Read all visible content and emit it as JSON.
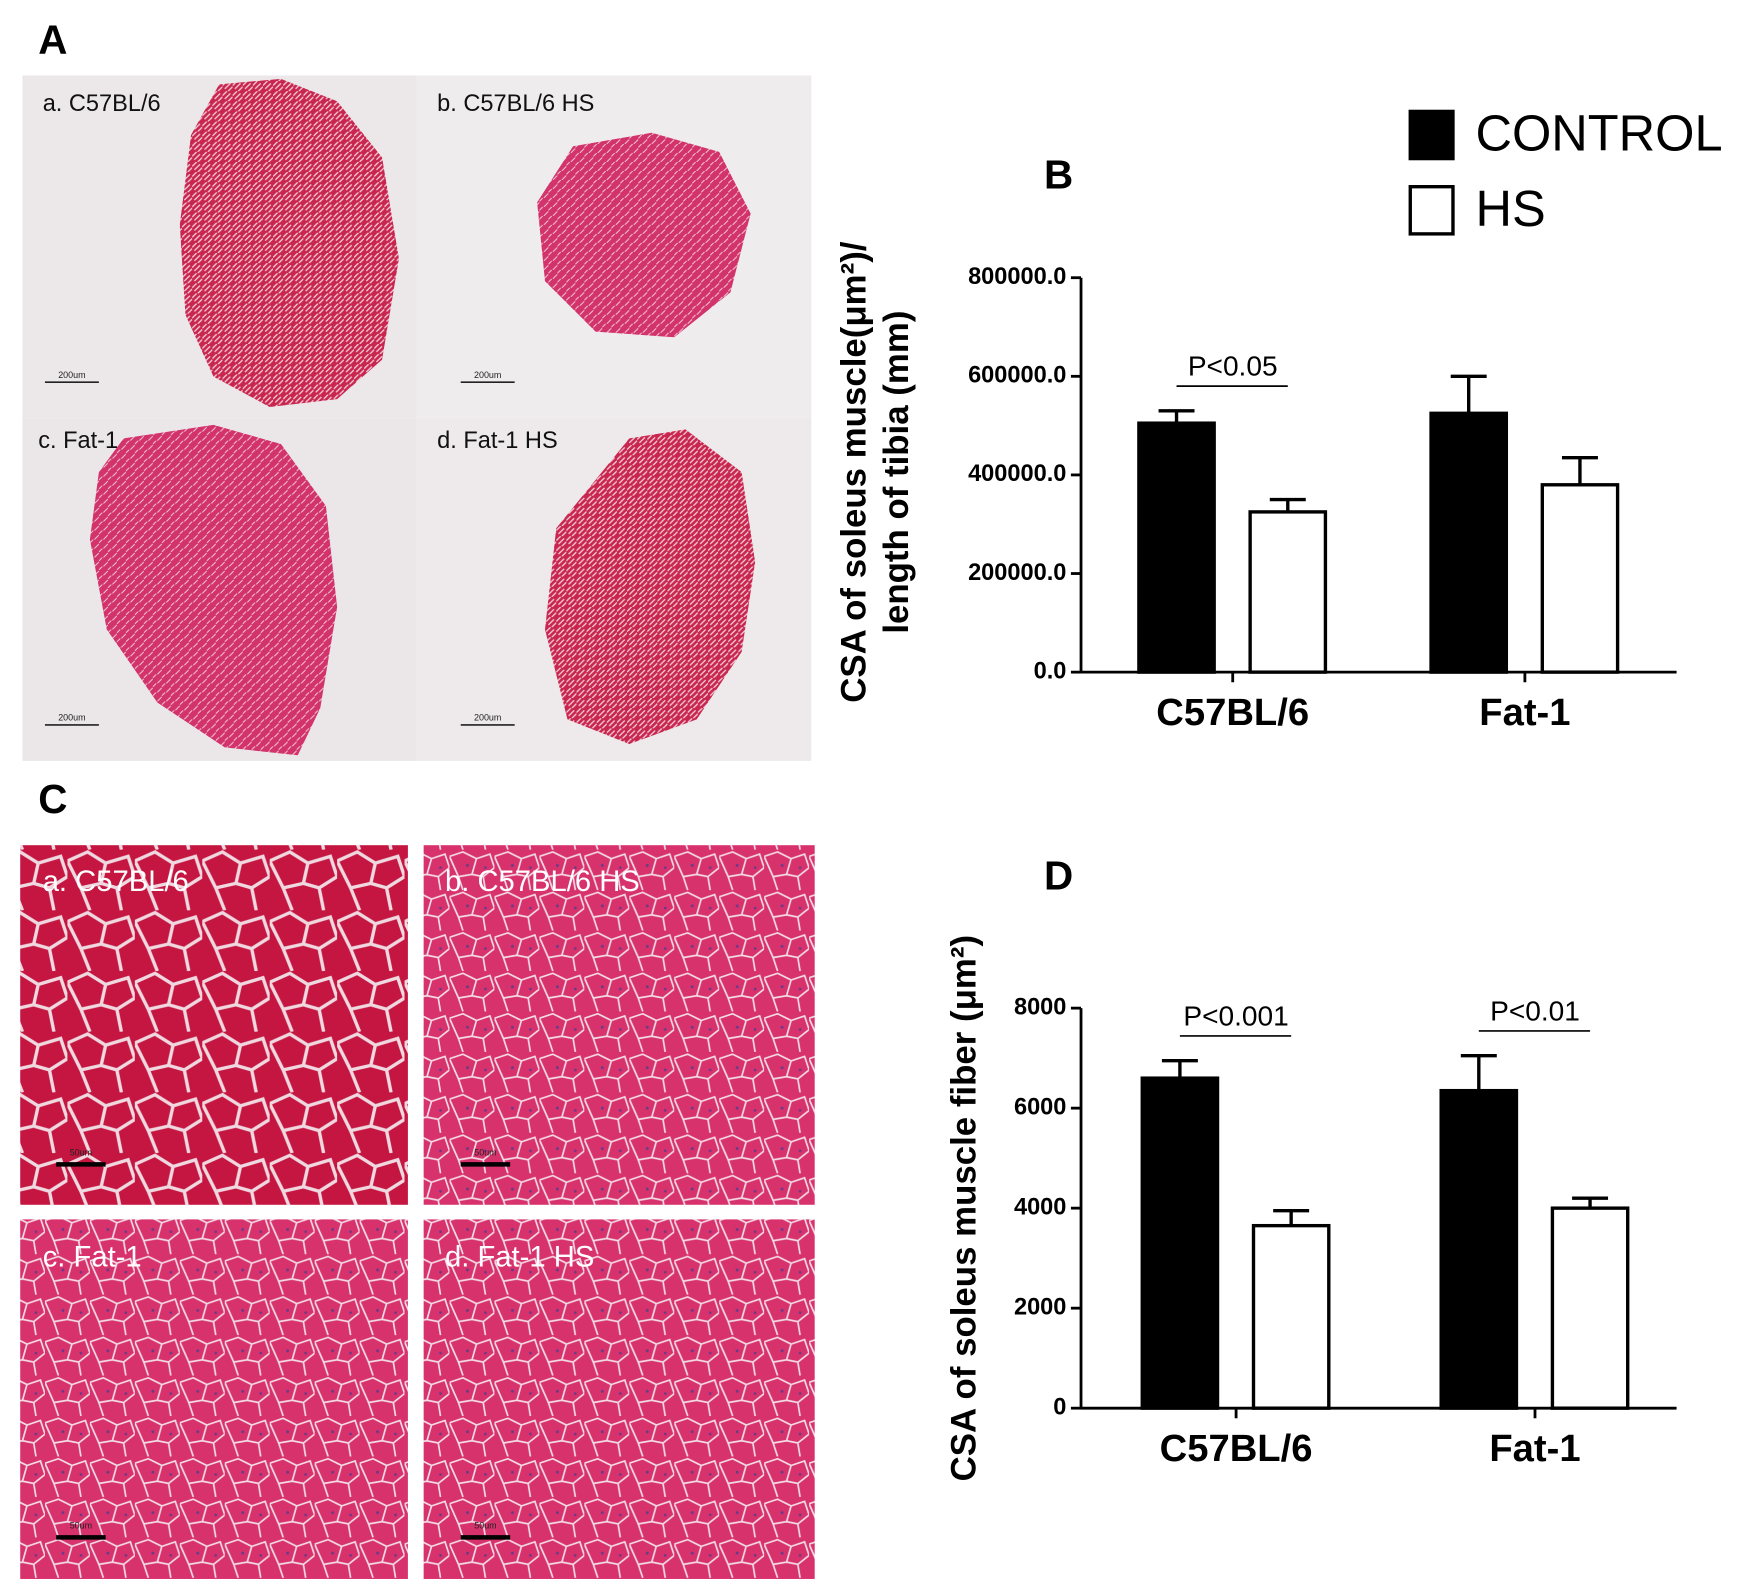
{
  "panel_a": {
    "label": "A",
    "images": [
      "a. C57BL/6",
      "b. C57BL/6 HS",
      "c. Fat-1",
      "d. Fat-1 HS"
    ],
    "scale_bar": "200um"
  },
  "panel_c": {
    "label": "C",
    "images": [
      "a. C57BL/6",
      "b. C57BL/6 HS",
      "c. Fat-1",
      "d. Fat-1 HS"
    ],
    "scale_bar": "50um"
  },
  "chart_data": [
    {
      "type": "bar",
      "title": "B",
      "ylabel": [
        "CSA of soleus muscle(μm²)/",
        "length of tibia (mm)"
      ],
      "categories": [
        "C57BL/6",
        "Fat-1"
      ],
      "series": [
        {
          "name": "CONTROL",
          "color": "#000000",
          "values": [
            505000,
            525000
          ],
          "errors": [
            25000,
            75000
          ]
        },
        {
          "name": "HS",
          "color": "#ffffff",
          "values": [
            325000,
            380000
          ],
          "errors": [
            25000,
            55000
          ]
        }
      ],
      "significance": [
        "P<0.05",
        null
      ],
      "ylim": [
        0,
        800000
      ],
      "yticks": [
        {
          "value": 0,
          "label": "0.0"
        },
        {
          "value": 200000,
          "label": "200000.0"
        },
        {
          "value": 400000,
          "label": "400000.0"
        },
        {
          "value": 600000,
          "label": "600000.0"
        },
        {
          "value": 800000,
          "label": "800000.0"
        }
      ],
      "legend": "upper right"
    },
    {
      "type": "bar",
      "title": "D",
      "ylabel": [
        "CSA of soleus muscle fiber (μm²)"
      ],
      "categories": [
        "C57BL/6",
        "Fat-1"
      ],
      "series": [
        {
          "color": "#000000",
          "values": [
            6600,
            6350
          ],
          "errors": [
            350,
            700
          ]
        },
        {
          "color": "#ffffff",
          "values": [
            3650,
            4000
          ],
          "errors": [
            300,
            200
          ]
        }
      ],
      "significance": [
        "P<0.001",
        "P<0.01"
      ],
      "ylim": [
        0,
        8000
      ],
      "yticks": [
        0,
        2000,
        4000,
        6000,
        8000
      ]
    }
  ]
}
